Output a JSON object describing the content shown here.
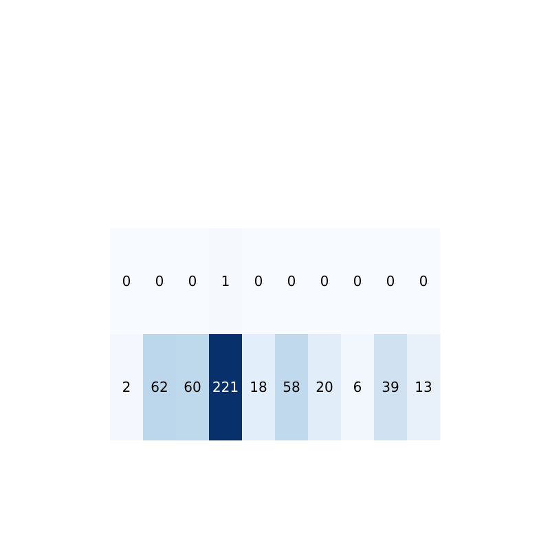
{
  "chart_data": {
    "type": "heatmap",
    "title": "",
    "xlabel": "",
    "ylabel": "",
    "colormap": "Blues",
    "value_range": [
      0,
      221
    ],
    "rows": [
      [
        0,
        0,
        0,
        1,
        0,
        0,
        0,
        0,
        0,
        0
      ],
      [
        2,
        62,
        60,
        221,
        18,
        58,
        20,
        6,
        39,
        13
      ]
    ],
    "cell_colors": [
      [
        "#f7fbff",
        "#f7fbff",
        "#f7fbff",
        "#f5f9fe",
        "#f7fbff",
        "#f7fbff",
        "#f7fbff",
        "#f7fbff",
        "#f7fbff",
        "#f7fbff"
      ],
      [
        "#f4f8fe",
        "#bcd7eb",
        "#bed8ec",
        "#08306b",
        "#e2eef9",
        "#c1d9ed",
        "#e1edf8",
        "#f1f7fd",
        "#d0e2f2",
        "#e8f1fa"
      ]
    ],
    "label_colors": {
      "dark": "#000000",
      "light": "#ffffff"
    },
    "grid": false,
    "legend": "none"
  }
}
